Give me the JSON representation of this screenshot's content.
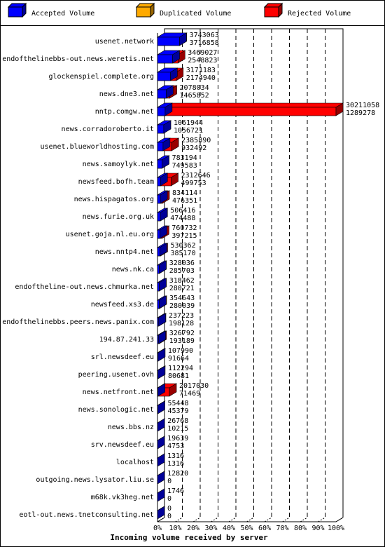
{
  "chart_data": {
    "type": "bar3d",
    "title": "Incoming volume received by server",
    "legend": [
      {
        "name": "Accepted Volume",
        "color": "#0000ff"
      },
      {
        "name": "Duplicated Volume",
        "color": "#ffaa00"
      },
      {
        "name": "Rejected Volume",
        "color": "#ff0000"
      }
    ],
    "categories": [
      "usenet.network",
      "endofthelinebbs-out.news.weretis.net",
      "glockenspiel.complete.org",
      "news.dne3.net",
      "nntp.comgw.net",
      "news.corradoroberto.it",
      "usenet.blueworldhosting.com",
      "news.samoylyk.net",
      "newsfeed.bofh.team",
      "news.hispagatos.org",
      "news.furie.org.uk",
      "usenet.goja.nl.eu.org",
      "news.nntp4.net",
      "news.nk.ca",
      "endoftheline-out.news.chmurka.net",
      "newsfeed.xs3.de",
      "endofthelinebbs.peers.news.panix.com",
      "194.87.241.33",
      "srl.newsdeef.eu",
      "peering.usenet.ovh",
      "news.netfront.net",
      "news.sonologic.net",
      "news.bbs.nz",
      "srv.newsdeef.eu",
      "localhost",
      "outgoing.news.lysator.liu.se",
      "m68k.vk3heg.net",
      "eotl-out.news.tnetconsulting.net"
    ],
    "totals": [
      3743063,
      3469027,
      3171183,
      2078034,
      30211058,
      1061944,
      2385890,
      783194,
      2312646,
      834114,
      506416,
      760732,
      530362,
      328036,
      318462,
      354643,
      237223,
      326792,
      107990,
      112294,
      2017030,
      55448,
      26768,
      19639,
      1316,
      12820,
      1746,
      0
    ],
    "accepted": [
      3716858,
      2548823,
      2174940,
      1465852,
      1289278,
      1056721,
      932492,
      749583,
      499753,
      476351,
      474488,
      397215,
      385170,
      285703,
      280721,
      280039,
      198128,
      193189,
      91664,
      80681,
      71469,
      45379,
      10215,
      4753,
      1316,
      0,
      0,
      0
    ],
    "xlim": [
      0,
      30211058
    ],
    "xticks": [
      {
        "value": 0,
        "label": "0%"
      },
      {
        "value": 3021105.8,
        "label": "10%"
      },
      {
        "value": 6042211.6,
        "label": "20%"
      },
      {
        "value": 9063317.4,
        "label": "30%"
      },
      {
        "value": 12084423.2,
        "label": "40%"
      },
      {
        "value": 15105529,
        "label": "50%"
      },
      {
        "value": 18126634.8,
        "label": "60%"
      },
      {
        "value": 21147740.6,
        "label": "70%"
      },
      {
        "value": 24168846.4,
        "label": "80%"
      },
      {
        "value": 27189952.2,
        "label": "90%"
      },
      {
        "value": 30211058,
        "label": "100%"
      }
    ],
    "grid": true
  }
}
